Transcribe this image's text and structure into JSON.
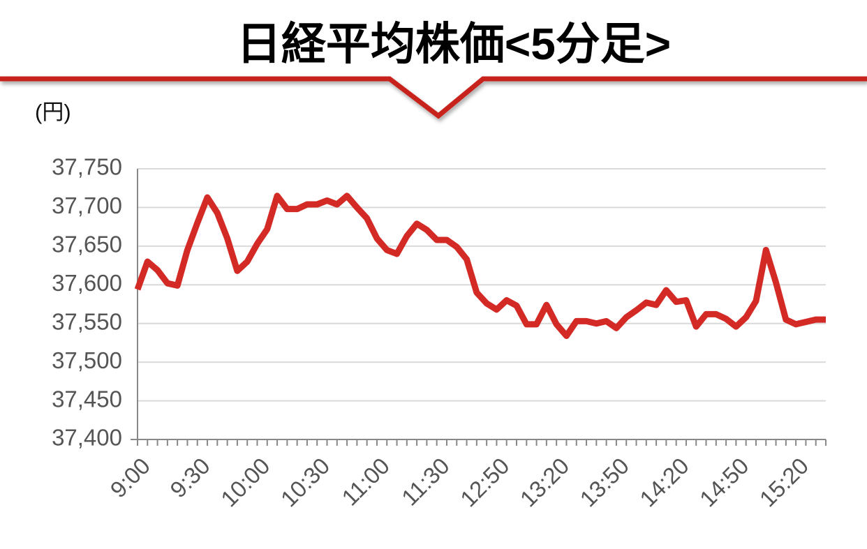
{
  "chart_data": {
    "type": "line",
    "title": "日経平均株価<5分足>",
    "y_unit": "(円)",
    "categories": [
      "9:00",
      null,
      null,
      null,
      null,
      null,
      "9:30",
      null,
      null,
      null,
      null,
      null,
      "10:00",
      null,
      null,
      null,
      null,
      null,
      "10:30",
      null,
      null,
      null,
      null,
      null,
      "11:00",
      null,
      null,
      null,
      null,
      null,
      "11:30",
      null,
      null,
      null,
      null,
      null,
      "12:50",
      null,
      null,
      null,
      null,
      null,
      "13:20",
      null,
      null,
      null,
      null,
      null,
      "13:50",
      null,
      null,
      null,
      null,
      null,
      "14:20",
      null,
      null,
      null,
      null,
      null,
      "14:50",
      null,
      null,
      null,
      null,
      null,
      "15:20",
      null,
      null,
      null
    ],
    "series": [
      {
        "color": "#d42a26",
        "values": [
          37594,
          37630,
          37619,
          37602,
          37599,
          37645,
          37680,
          37713,
          37693,
          37660,
          37618,
          37630,
          37653,
          37672,
          37715,
          37698,
          37698,
          37704,
          37704,
          37709,
          37704,
          37715,
          37700,
          37686,
          37660,
          37645,
          37640,
          37663,
          37679,
          37671,
          37658,
          37658,
          37649,
          37633,
          37590,
          37576,
          37568,
          37580,
          37573,
          37549,
          37549,
          37574,
          37549,
          37534,
          37553,
          37553,
          37550,
          37553,
          37544,
          37558,
          37567,
          37577,
          37574,
          37593,
          37578,
          37580,
          37546,
          37562,
          37562,
          37556,
          37546,
          37558,
          37579,
          37645,
          37603,
          37555,
          37549,
          37552,
          37555,
          37555
        ]
      }
    ],
    "ylim": [
      37400,
      37750
    ],
    "yticks": [
      {
        "value": 37400,
        "label": "37,400"
      },
      {
        "value": 37450,
        "label": "37,450"
      },
      {
        "value": 37500,
        "label": "37,500"
      },
      {
        "value": 37550,
        "label": "37,550"
      },
      {
        "value": 37600,
        "label": "37,600"
      },
      {
        "value": 37650,
        "label": "37,650"
      },
      {
        "value": 37700,
        "label": "37,700"
      },
      {
        "value": 37750,
        "label": "37,750"
      }
    ],
    "grid": true
  }
}
